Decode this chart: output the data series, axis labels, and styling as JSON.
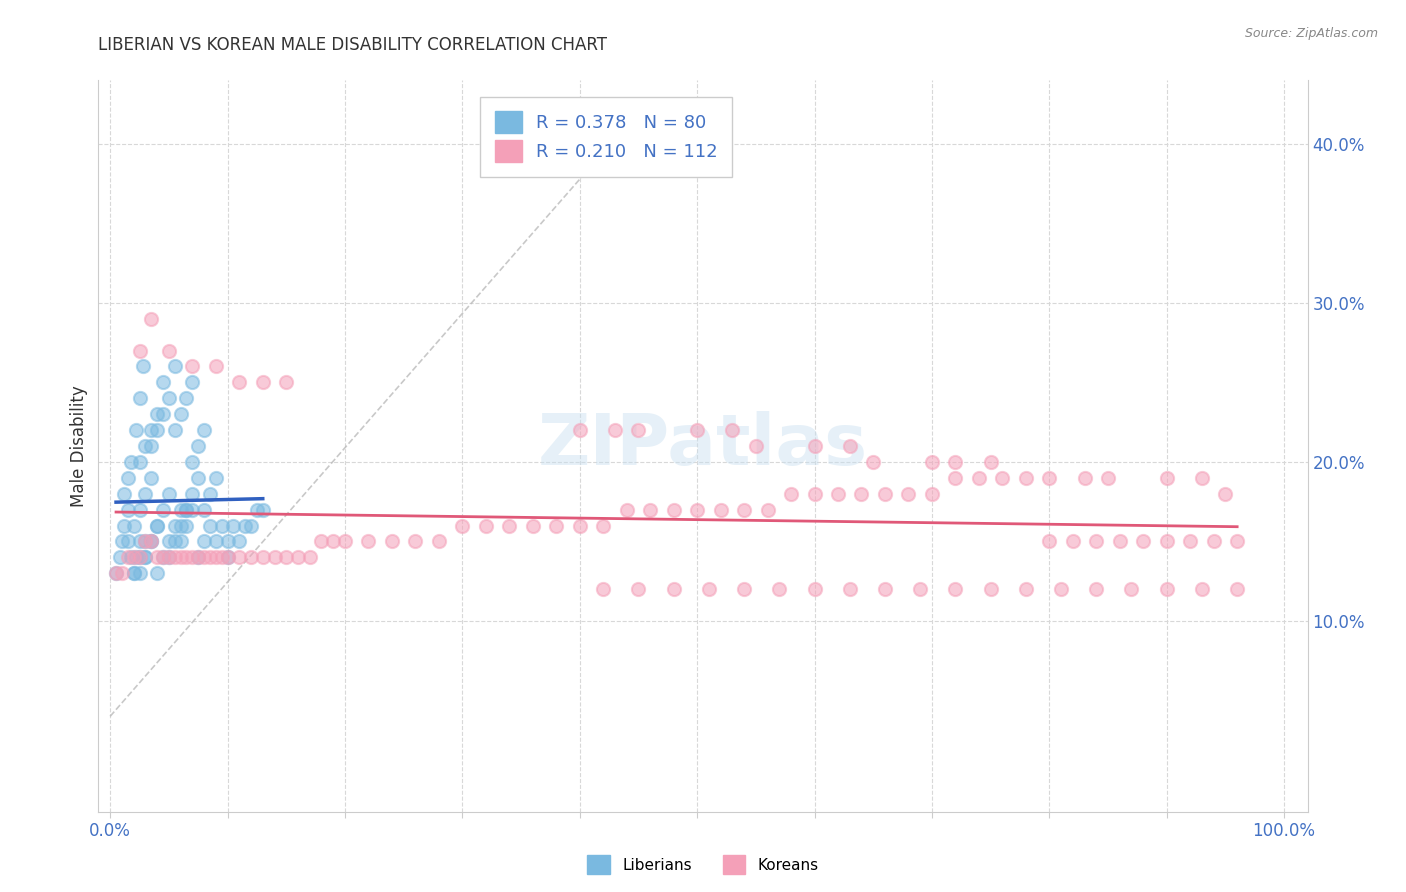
{
  "title": "LIBERIAN VS KOREAN MALE DISABILITY CORRELATION CHART",
  "source": "Source: ZipAtlas.com",
  "ylabel": "Male Disability",
  "xlim": [
    -0.01,
    1.02
  ],
  "ylim": [
    -0.02,
    0.44
  ],
  "x_ticks": [
    0.0,
    0.1,
    0.2,
    0.3,
    0.4,
    0.5,
    0.6,
    0.7,
    0.8,
    0.9,
    1.0
  ],
  "y_ticks": [
    0.1,
    0.2,
    0.3,
    0.4
  ],
  "x_tick_labels": [
    "0.0%",
    "",
    "",
    "",
    "",
    "",
    "",
    "",
    "",
    "",
    "100.0%"
  ],
  "y_tick_labels_right": [
    "10.0%",
    "20.0%",
    "30.0%",
    "40.0%"
  ],
  "liberian_color": "#7ab9e0",
  "korean_color": "#f4a0b8",
  "liberian_line_color": "#3060c0",
  "korean_line_color": "#e05878",
  "watermark": "ZIPatlas",
  "background_color": "#ffffff",
  "grid_color": "#d8d8d8",
  "liberian_x": [
    0.005,
    0.008,
    0.01,
    0.012,
    0.015,
    0.018,
    0.02,
    0.022,
    0.025,
    0.012,
    0.015,
    0.018,
    0.022,
    0.025,
    0.028,
    0.02,
    0.025,
    0.03,
    0.015,
    0.02,
    0.025,
    0.03,
    0.035,
    0.025,
    0.03,
    0.035,
    0.04,
    0.025,
    0.03,
    0.035,
    0.04,
    0.045,
    0.03,
    0.035,
    0.04,
    0.045,
    0.05,
    0.035,
    0.04,
    0.045,
    0.05,
    0.055,
    0.04,
    0.045,
    0.05,
    0.055,
    0.06,
    0.05,
    0.055,
    0.06,
    0.065,
    0.055,
    0.06,
    0.065,
    0.07,
    0.06,
    0.065,
    0.07,
    0.065,
    0.07,
    0.075,
    0.07,
    0.075,
    0.08,
    0.075,
    0.08,
    0.085,
    0.08,
    0.085,
    0.09,
    0.09,
    0.095,
    0.1,
    0.1,
    0.105,
    0.11,
    0.115,
    0.12,
    0.125,
    0.13
  ],
  "liberian_y": [
    0.13,
    0.14,
    0.15,
    0.16,
    0.17,
    0.14,
    0.13,
    0.14,
    0.15,
    0.18,
    0.19,
    0.2,
    0.22,
    0.24,
    0.26,
    0.13,
    0.14,
    0.15,
    0.15,
    0.16,
    0.17,
    0.18,
    0.19,
    0.13,
    0.14,
    0.15,
    0.16,
    0.2,
    0.21,
    0.22,
    0.23,
    0.25,
    0.14,
    0.15,
    0.16,
    0.17,
    0.18,
    0.21,
    0.22,
    0.23,
    0.24,
    0.26,
    0.13,
    0.14,
    0.15,
    0.16,
    0.17,
    0.14,
    0.15,
    0.16,
    0.17,
    0.22,
    0.23,
    0.24,
    0.25,
    0.15,
    0.16,
    0.17,
    0.17,
    0.18,
    0.19,
    0.2,
    0.21,
    0.22,
    0.14,
    0.15,
    0.16,
    0.17,
    0.18,
    0.19,
    0.15,
    0.16,
    0.14,
    0.15,
    0.16,
    0.15,
    0.16,
    0.16,
    0.17,
    0.17
  ],
  "korean_x": [
    0.005,
    0.01,
    0.015,
    0.02,
    0.025,
    0.03,
    0.035,
    0.04,
    0.045,
    0.05,
    0.055,
    0.06,
    0.065,
    0.07,
    0.075,
    0.08,
    0.085,
    0.09,
    0.095,
    0.1,
    0.11,
    0.12,
    0.13,
    0.14,
    0.15,
    0.16,
    0.17,
    0.18,
    0.19,
    0.2,
    0.22,
    0.24,
    0.26,
    0.28,
    0.3,
    0.32,
    0.34,
    0.36,
    0.38,
    0.4,
    0.42,
    0.44,
    0.46,
    0.48,
    0.5,
    0.52,
    0.54,
    0.56,
    0.58,
    0.6,
    0.62,
    0.64,
    0.66,
    0.68,
    0.7,
    0.72,
    0.74,
    0.76,
    0.78,
    0.8,
    0.82,
    0.84,
    0.86,
    0.88,
    0.9,
    0.92,
    0.94,
    0.96,
    0.025,
    0.035,
    0.05,
    0.07,
    0.09,
    0.11,
    0.13,
    0.15,
    0.4,
    0.43,
    0.45,
    0.5,
    0.53,
    0.55,
    0.6,
    0.63,
    0.65,
    0.7,
    0.72,
    0.75,
    0.8,
    0.83,
    0.85,
    0.9,
    0.93,
    0.95,
    0.42,
    0.45,
    0.48,
    0.51,
    0.54,
    0.57,
    0.6,
    0.63,
    0.66,
    0.69,
    0.72,
    0.75,
    0.78,
    0.81,
    0.84,
    0.87,
    0.9,
    0.93,
    0.96
  ],
  "korean_y": [
    0.13,
    0.13,
    0.14,
    0.14,
    0.14,
    0.15,
    0.15,
    0.14,
    0.14,
    0.14,
    0.14,
    0.14,
    0.14,
    0.14,
    0.14,
    0.14,
    0.14,
    0.14,
    0.14,
    0.14,
    0.14,
    0.14,
    0.14,
    0.14,
    0.14,
    0.14,
    0.14,
    0.15,
    0.15,
    0.15,
    0.15,
    0.15,
    0.15,
    0.15,
    0.16,
    0.16,
    0.16,
    0.16,
    0.16,
    0.16,
    0.16,
    0.17,
    0.17,
    0.17,
    0.17,
    0.17,
    0.17,
    0.17,
    0.18,
    0.18,
    0.18,
    0.18,
    0.18,
    0.18,
    0.18,
    0.19,
    0.19,
    0.19,
    0.19,
    0.15,
    0.15,
    0.15,
    0.15,
    0.15,
    0.15,
    0.15,
    0.15,
    0.15,
    0.27,
    0.29,
    0.27,
    0.26,
    0.26,
    0.25,
    0.25,
    0.25,
    0.22,
    0.22,
    0.22,
    0.22,
    0.22,
    0.21,
    0.21,
    0.21,
    0.2,
    0.2,
    0.2,
    0.2,
    0.19,
    0.19,
    0.19,
    0.19,
    0.19,
    0.18,
    0.12,
    0.12,
    0.12,
    0.12,
    0.12,
    0.12,
    0.12,
    0.12,
    0.12,
    0.12,
    0.12,
    0.12,
    0.12,
    0.12,
    0.12,
    0.12,
    0.12,
    0.12,
    0.12
  ]
}
